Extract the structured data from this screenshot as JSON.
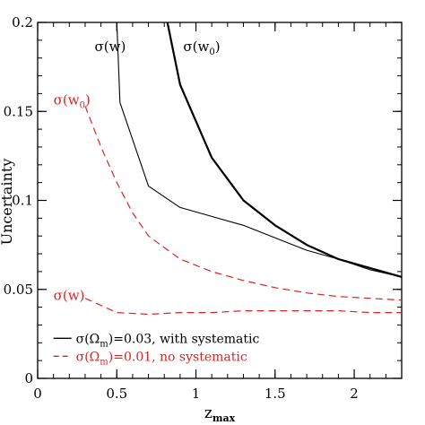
{
  "chart_data": {
    "type": "line",
    "xlabel": "z",
    "xlabel_sub": "max",
    "ylabel": "Uncertainty",
    "xlim": [
      0,
      2.3
    ],
    "ylim": [
      0,
      0.2
    ],
    "xticks": [
      0,
      0.5,
      1,
      1.5,
      2
    ],
    "xtick_labels": [
      "0",
      "0.5",
      "1",
      "1.5",
      "2"
    ],
    "yticks": [
      0,
      0.05,
      0.1,
      0.15,
      0.2
    ],
    "ytick_labels": [
      "0",
      "0.05",
      "0.1",
      "0.15",
      "0.2"
    ],
    "grid": false,
    "series": [
      {
        "color": "#000000",
        "style": "solid",
        "width": 1.1,
        "x": [
          0.5,
          0.52,
          0.7,
          0.9,
          1.1,
          1.3,
          1.5,
          1.7,
          1.9,
          2.1,
          2.3
        ],
        "y": [
          0.2,
          0.155,
          0.108,
          0.096,
          0.091,
          0.086,
          0.079,
          0.072,
          0.067,
          0.061,
          0.057
        ]
      },
      {
        "color": "#000000",
        "style": "solid",
        "width": 2.2,
        "x": [
          0.82,
          0.9,
          1.1,
          1.3,
          1.5,
          1.7,
          1.9,
          2.1,
          2.3
        ],
        "y": [
          0.2,
          0.165,
          0.124,
          0.1,
          0.086,
          0.075,
          0.067,
          0.062,
          0.057
        ]
      },
      {
        "color": "#dd2222",
        "style": "dashed",
        "width": 1.2,
        "x": [
          0.3,
          0.4,
          0.5,
          0.6,
          0.7,
          0.9,
          1.1,
          1.3,
          1.5,
          1.7,
          1.9,
          2.1,
          2.3
        ],
        "y": [
          0.153,
          0.13,
          0.11,
          0.093,
          0.08,
          0.067,
          0.06,
          0.055,
          0.051,
          0.048,
          0.046,
          0.045,
          0.044
        ]
      },
      {
        "color": "#dd2222",
        "style": "dashed",
        "width": 1.2,
        "x": [
          0.3,
          0.4,
          0.5,
          0.7,
          0.9,
          1.1,
          1.3,
          1.5,
          1.7,
          1.9,
          2.1,
          2.3
        ],
        "y": [
          0.045,
          0.041,
          0.037,
          0.036,
          0.037,
          0.037,
          0.038,
          0.038,
          0.038,
          0.038,
          0.037,
          0.037
        ]
      }
    ],
    "annotations": [
      {
        "text": "σ(w)",
        "color": "#000000",
        "x": 0.36,
        "y": 0.184
      },
      {
        "text": "σ(w",
        "sub": "0",
        "close": ")",
        "color": "#000000",
        "x": 0.92,
        "y": 0.184
      },
      {
        "text": "σ(w",
        "sub": "0",
        "close": ")",
        "color": "#dd2222",
        "x": 0.1,
        "y": 0.154
      },
      {
        "text": "σ(w)",
        "color": "#dd2222",
        "x": 0.1,
        "y": 0.044
      }
    ],
    "legend": {
      "placement": "bottom-left",
      "entries": [
        {
          "pre": "σ(Ω",
          "sub": "m",
          "post": ")=0.03, with systematic",
          "color": "#000000",
          "style": "solid"
        },
        {
          "pre": "σ(Ω",
          "sub": "m",
          "post": ")=0.01, no systematic",
          "color": "#dd2222",
          "style": "dashed"
        }
      ]
    }
  }
}
